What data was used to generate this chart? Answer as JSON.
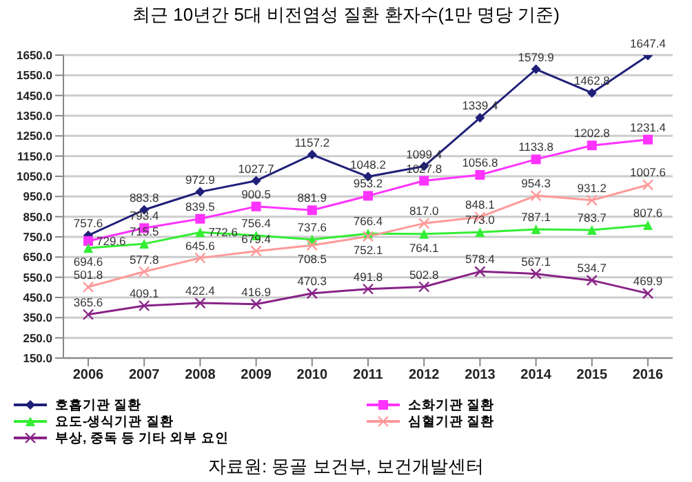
{
  "chart_data": {
    "type": "line",
    "title": "최근 10년간 5대 비전염성 질환 환자수(1만 명당 기준)",
    "annotations": [
      "자료원: 몽골 보건부, 보건개발센터"
    ],
    "categories": [
      "2006",
      "2007",
      "2008",
      "2009",
      "2010",
      "2011",
      "2012",
      "2013",
      "2014",
      "2015",
      "2016"
    ],
    "series": [
      {
        "name": "호흡기관 질환",
        "color": "#1f1f7a",
        "marker": "diamond",
        "values": [
          757.6,
          883.8,
          972.9,
          1027.7,
          1157.2,
          1048.2,
          1099.4,
          1339.4,
          1579.9,
          1462.8,
          1647.4
        ]
      },
      {
        "name": "소화기관 질환",
        "color": "#ff33ff",
        "marker": "square",
        "values": [
          729.6,
          793.4,
          839.5,
          900.5,
          881.9,
          953.2,
          1027.8,
          1056.8,
          1133.8,
          1202.8,
          1231.4
        ]
      },
      {
        "name": "요도-생식기관 질환",
        "color": "#33ee33",
        "marker": "triangle",
        "values": [
          694.6,
          715.5,
          772.6,
          756.4,
          737.6,
          766.4,
          764.1,
          773.0,
          787.1,
          783.7,
          807.6
        ],
        "value_labels": [
          "694.6",
          "715.5",
          "772.6",
          "756.4",
          "737.6",
          "766.4",
          "764.1",
          "773.0",
          "787.1",
          "783.7",
          "807.6"
        ]
      },
      {
        "name": "심혈기관 질환",
        "color": "#ff9999",
        "marker": "cross",
        "values": [
          501.8,
          577.8,
          645.6,
          679.4,
          708.5,
          752.1,
          817.0,
          848.1,
          954.3,
          931.2,
          1007.6
        ],
        "value_labels": [
          "501.8",
          "577.8",
          "645.6",
          "679.4",
          "708.5",
          "752.1",
          "817.0",
          "848.1",
          "954.3",
          "931.2",
          "1007.6"
        ]
      },
      {
        "name": "부상, 중독 등 기타 외부 요인",
        "color": "#882288",
        "marker": "cross",
        "values": [
          365.6,
          409.1,
          422.4,
          416.9,
          470.3,
          491.8,
          502.8,
          578.4,
          567.1,
          534.7,
          469.9
        ]
      }
    ],
    "ylim": [
      150,
      1650
    ],
    "yticks": [
      {
        "value": 150,
        "label": "150.0"
      },
      {
        "value": 250,
        "label": "250.0"
      },
      {
        "value": 350,
        "label": "350.0"
      },
      {
        "value": 450,
        "label": "450.0"
      },
      {
        "value": 550,
        "label": "550.0"
      },
      {
        "value": 650,
        "label": "650.0"
      },
      {
        "value": 750,
        "label": "750.0"
      },
      {
        "value": 850,
        "label": "850.0"
      },
      {
        "value": 950,
        "label": "950.0"
      },
      {
        "value": 1050,
        "label": "1050.0"
      },
      {
        "value": 1150,
        "label": "1150.0"
      },
      {
        "value": 1250,
        "label": "1250.0"
      },
      {
        "value": 1350,
        "label": "1350.0"
      },
      {
        "value": 1450,
        "label": "1450.0"
      },
      {
        "value": 1550,
        "label": "1550.0"
      },
      {
        "value": 1650,
        "label": "1650.0"
      }
    ],
    "grid": "y",
    "legend": "bottom",
    "data_labels": true
  }
}
